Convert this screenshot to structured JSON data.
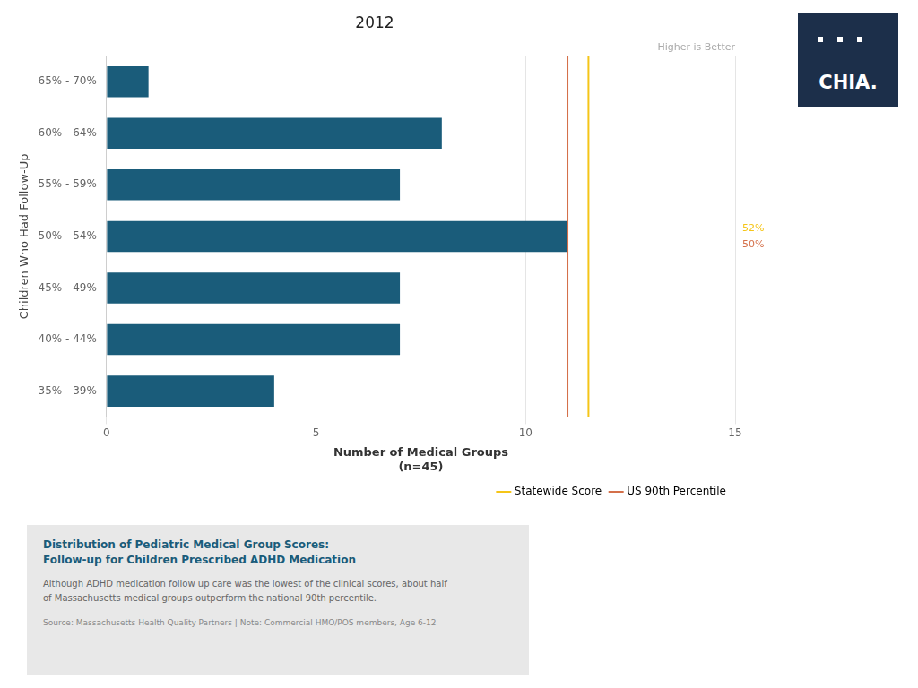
{
  "chart_data": {
    "type": "bar",
    "orientation": "horizontal",
    "title": "2012",
    "categories": [
      "65% - 70%",
      "60% - 64%",
      "55% - 59%",
      "50% - 54%",
      "45% - 49%",
      "40% - 44%",
      "35% - 39%"
    ],
    "values": [
      1,
      8,
      7,
      11,
      7,
      7,
      4
    ],
    "color": "#1a5c7a",
    "xlabel": [
      "Number of Medical Groups",
      "(n=45)"
    ],
    "ylabel": "Children Who Had Follow-Up",
    "xlim": [
      0,
      15
    ],
    "xticks": [
      0,
      5,
      10,
      15
    ],
    "grid": true,
    "legend": "bottom",
    "reference_lines": [
      {
        "name": "Statewide Score",
        "value": 11.5,
        "label": "52%",
        "color": "#f5c518"
      },
      {
        "name": "US 90th Percentile",
        "value": 11.0,
        "label": "50%",
        "color": "#d4704a"
      }
    ],
    "annotations": [
      "Higher is Better"
    ],
    "info_box": {
      "title": [
        "Distribution of Pediatric Medical Group Scores:",
        "Follow-up for Children Prescribed ADHD Medication"
      ],
      "body": "Although ADHD medication follow up care was the lowest of the clinical scores, about half\nof Massachusetts medical groups outperform the national 90th percentile.",
      "source": "Source: Massachusetts Health Quality Partners | Note: Commercial HMO/POS members, Age 6-12",
      "color": "#1a5c7a"
    },
    "logo": {
      "text": "CHIA.",
      "color": "#1c2f4a"
    }
  }
}
